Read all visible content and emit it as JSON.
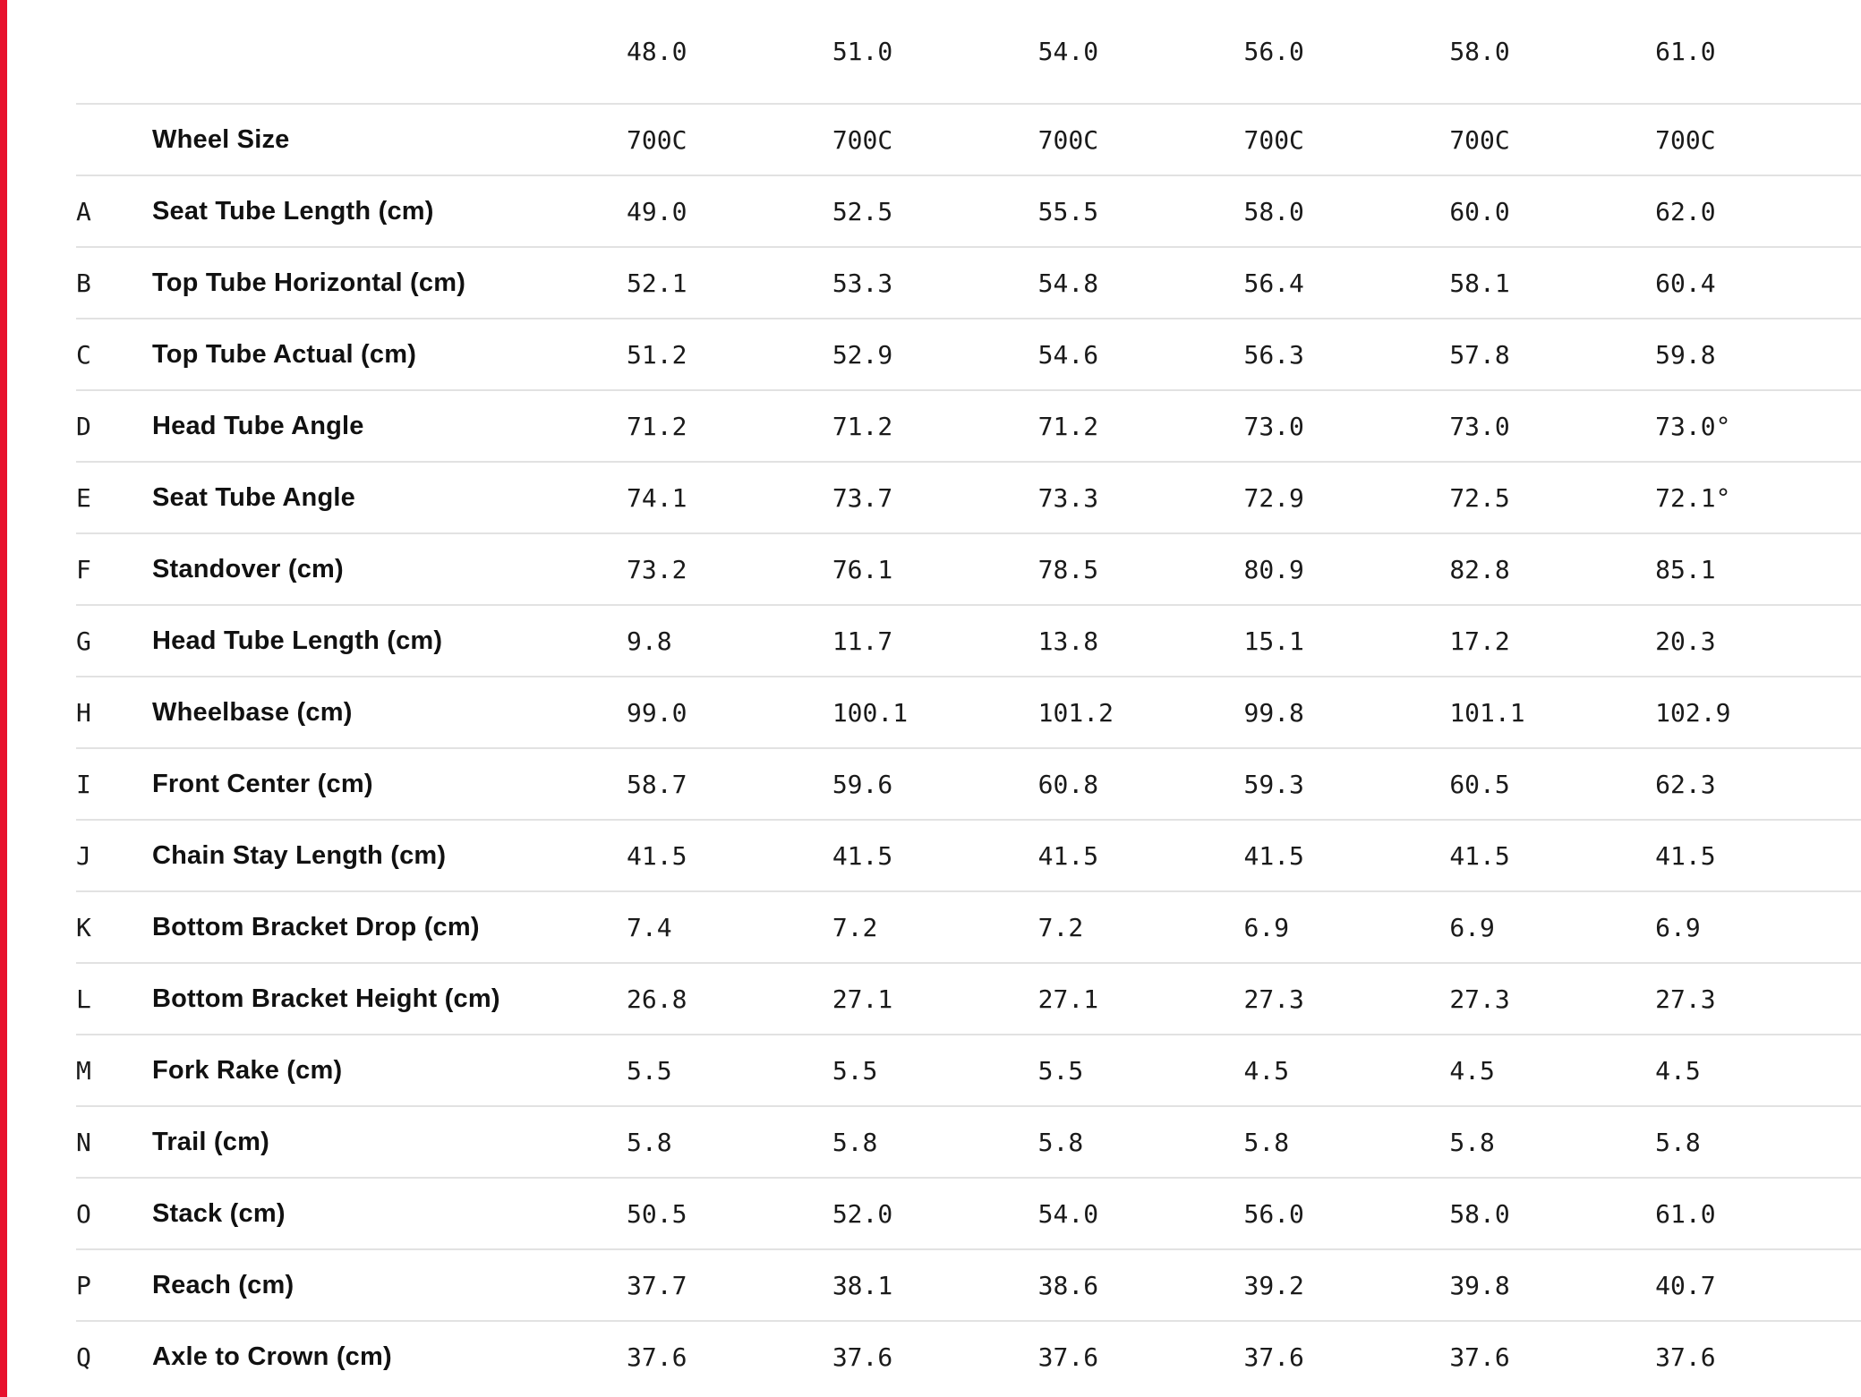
{
  "accent": {
    "left_strip_color": "#e8112d",
    "divider_color": "#e2e2e2"
  },
  "table": {
    "sizes": [
      "48.0",
      "51.0",
      "54.0",
      "56.0",
      "58.0",
      "61.0"
    ],
    "rows": [
      {
        "letter": "",
        "label": "Wheel Size",
        "values": [
          "700C",
          "700C",
          "700C",
          "700C",
          "700C",
          "700C"
        ]
      },
      {
        "letter": "A",
        "label": "Seat Tube Length (cm)",
        "values": [
          "49.0",
          "52.5",
          "55.5",
          "58.0",
          "60.0",
          "62.0"
        ]
      },
      {
        "letter": "B",
        "label": "Top Tube Horizontal (cm)",
        "values": [
          "52.1",
          "53.3",
          "54.8",
          "56.4",
          "58.1",
          "60.4"
        ]
      },
      {
        "letter": "C",
        "label": "Top Tube Actual (cm)",
        "values": [
          "51.2",
          "52.9",
          "54.6",
          "56.3",
          "57.8",
          "59.8"
        ]
      },
      {
        "letter": "D",
        "label": "Head Tube Angle",
        "values": [
          "71.2",
          "71.2",
          "71.2",
          "73.0",
          "73.0",
          "73.0°"
        ]
      },
      {
        "letter": "E",
        "label": "Seat Tube Angle",
        "values": [
          "74.1",
          "73.7",
          "73.3",
          "72.9",
          "72.5",
          "72.1°"
        ]
      },
      {
        "letter": "F",
        "label": "Standover (cm)",
        "values": [
          "73.2",
          "76.1",
          "78.5",
          "80.9",
          "82.8",
          "85.1"
        ]
      },
      {
        "letter": "G",
        "label": "Head Tube Length (cm)",
        "values": [
          "9.8",
          "11.7",
          "13.8",
          "15.1",
          "17.2",
          "20.3"
        ]
      },
      {
        "letter": "H",
        "label": "Wheelbase (cm)",
        "values": [
          "99.0",
          "100.1",
          "101.2",
          "99.8",
          "101.1",
          "102.9"
        ]
      },
      {
        "letter": "I",
        "label": "Front Center (cm)",
        "values": [
          "58.7",
          "59.6",
          "60.8",
          "59.3",
          "60.5",
          "62.3"
        ]
      },
      {
        "letter": "J",
        "label": "Chain Stay Length (cm)",
        "values": [
          "41.5",
          "41.5",
          "41.5",
          "41.5",
          "41.5",
          "41.5"
        ]
      },
      {
        "letter": "K",
        "label": "Bottom Bracket Drop (cm)",
        "values": [
          "7.4",
          "7.2",
          "7.2",
          "6.9",
          "6.9",
          "6.9"
        ]
      },
      {
        "letter": "L",
        "label": "Bottom Bracket Height (cm)",
        "values": [
          "26.8",
          "27.1",
          "27.1",
          "27.3",
          "27.3",
          "27.3"
        ]
      },
      {
        "letter": "M",
        "label": "Fork Rake (cm)",
        "values": [
          "5.5",
          "5.5",
          "5.5",
          "4.5",
          "4.5",
          "4.5"
        ]
      },
      {
        "letter": "N",
        "label": "Trail (cm)",
        "values": [
          "5.8",
          "5.8",
          "5.8",
          "5.8",
          "5.8",
          "5.8"
        ]
      },
      {
        "letter": "O",
        "label": "Stack (cm)",
        "values": [
          "50.5",
          "52.0",
          "54.0",
          "56.0",
          "58.0",
          "61.0"
        ]
      },
      {
        "letter": "P",
        "label": "Reach (cm)",
        "values": [
          "37.7",
          "38.1",
          "38.6",
          "39.2",
          "39.8",
          "40.7"
        ]
      },
      {
        "letter": "Q",
        "label": "Axle to Crown (cm)",
        "values": [
          "37.6",
          "37.6",
          "37.6",
          "37.6",
          "37.6",
          "37.6"
        ]
      }
    ]
  }
}
